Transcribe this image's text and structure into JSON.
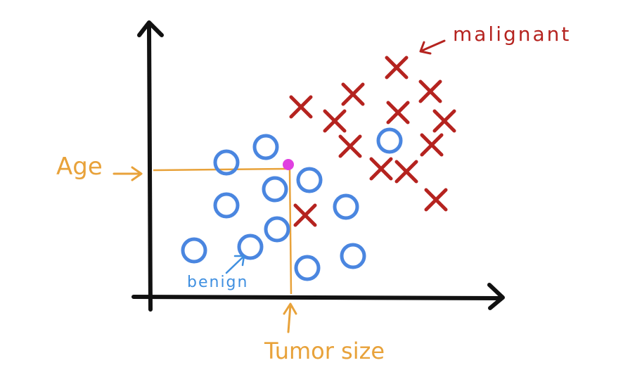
{
  "labels": {
    "x_axis": "Tumor size",
    "y_axis": "Age",
    "benign": "benign",
    "malignant": "malignant"
  },
  "colors": {
    "axis": "#111111",
    "benign": "#4a86e0",
    "malignant": "#b5231f",
    "guide": "#e8a23a",
    "query": "#e040e0",
    "benign_label": "#3f8fe0"
  }
}
